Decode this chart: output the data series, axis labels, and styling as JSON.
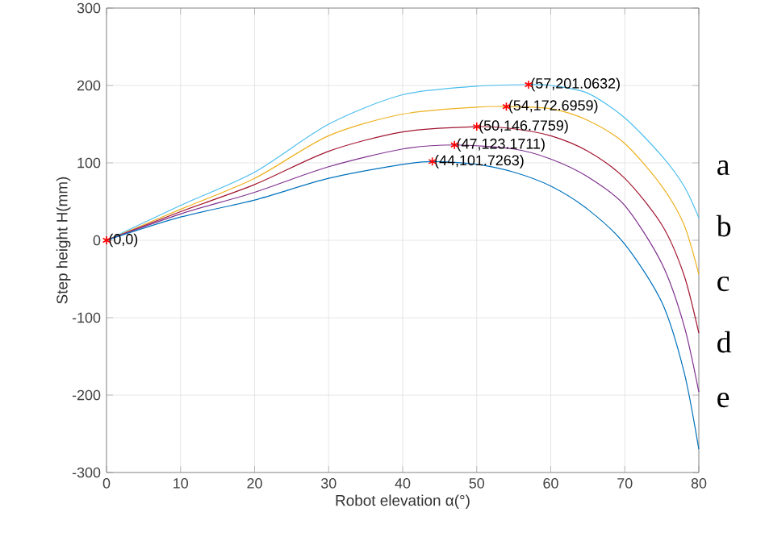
{
  "chart_data": {
    "type": "line",
    "xlabel": "Robot elevation α(°)",
    "ylabel": "Step height H(mm)",
    "xlim": [
      0,
      80
    ],
    "ylim": [
      -300,
      300
    ],
    "xticks": [
      0,
      10,
      20,
      30,
      40,
      50,
      60,
      70,
      80
    ],
    "yticks": [
      -300,
      -200,
      -100,
      0,
      100,
      200,
      300
    ],
    "grid": true,
    "marker": "none",
    "line_style": "solid",
    "series": [
      {
        "name": "a",
        "color": "#4dbeee",
        "x": [
          0,
          10,
          20,
          30,
          40,
          50,
          57,
          60,
          65,
          70,
          75,
          78,
          80
        ],
        "values": [
          0,
          45,
          88,
          150,
          188,
          199,
          201.0632,
          200,
          190,
          158,
          109,
          70,
          29
        ]
      },
      {
        "name": "b",
        "color": "#edb120",
        "x": [
          0,
          10,
          20,
          30,
          40,
          50,
          54,
          60,
          65,
          70,
          75,
          78,
          80
        ],
        "values": [
          0,
          40,
          80,
          135,
          163,
          172,
          172.6959,
          170,
          155,
          125,
          70,
          20,
          -44
        ]
      },
      {
        "name": "c",
        "color": "#a2142f",
        "x": [
          0,
          10,
          20,
          30,
          40,
          50,
          55,
          60,
          65,
          70,
          75,
          78,
          80
        ],
        "values": [
          0,
          37,
          72,
          115,
          140,
          146.7759,
          144,
          135,
          115,
          80,
          20,
          -45,
          -120
        ]
      },
      {
        "name": "d",
        "color": "#7e2f8e",
        "x": [
          0,
          10,
          20,
          30,
          40,
          47,
          55,
          60,
          65,
          70,
          75,
          78,
          80
        ],
        "values": [
          0,
          34,
          62,
          95,
          118,
          123.1711,
          118,
          105,
          82,
          45,
          -30,
          -110,
          -196
        ]
      },
      {
        "name": "e",
        "color": "#0072bd",
        "x": [
          0,
          10,
          20,
          30,
          40,
          44,
          50,
          55,
          60,
          65,
          70,
          75,
          78,
          80
        ],
        "values": [
          0,
          30,
          52,
          80,
          98,
          101.7263,
          98,
          88,
          70,
          40,
          -5,
          -80,
          -170,
          -270
        ]
      },
      {
        "type": "scatter",
        "marker": "cross",
        "color": "#ff0000",
        "x": [
          0,
          57,
          54,
          50,
          47,
          44
        ],
        "values": [
          0,
          201.0632,
          172.6959,
          146.7759,
          123.1711,
          101.7263
        ]
      }
    ],
    "annotations": [
      {
        "text": "(0,0)",
        "x": 0,
        "y": 0
      },
      {
        "text": "(57,201.0632)",
        "x": 57,
        "y": 201.0632
      },
      {
        "text": "(54,172.6959)",
        "x": 54,
        "y": 172.6959
      },
      {
        "text": "(50,146.7759)",
        "x": 50,
        "y": 146.7759
      },
      {
        "text": "(47,123.1711)",
        "x": 47,
        "y": 123.1711
      },
      {
        "text": "(44,101.7263)",
        "x": 44,
        "y": 101.7263
      }
    ]
  }
}
